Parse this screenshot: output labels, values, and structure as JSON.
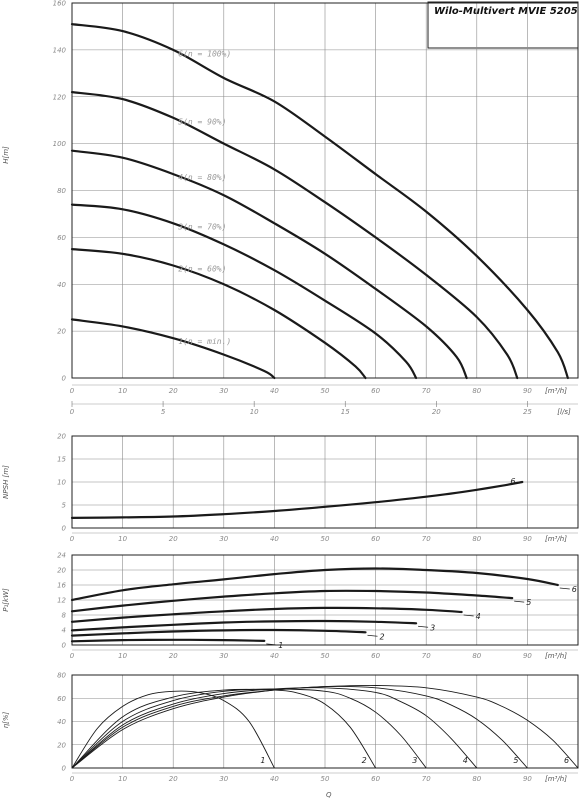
{
  "title": "Wilo-Multivert MVIE 5205",
  "q_unit": "[m³/h]",
  "ls_unit": "[l/s]",
  "bottom_axis_label": "Q",
  "chart_data": [
    {
      "type": "line",
      "id": "head",
      "ylabel": "H[m]",
      "xlim": [
        0,
        100
      ],
      "ylim": [
        0,
        160
      ],
      "x_ticks": [
        0,
        10,
        20,
        30,
        40,
        50,
        60,
        70,
        80,
        90
      ],
      "y_ticks": [
        0,
        20,
        40,
        60,
        80,
        100,
        120,
        140,
        160
      ],
      "series": [
        {
          "name": "1(n = min.)",
          "x": [
            0,
            10,
            20,
            30,
            38,
            40
          ],
          "y": [
            25,
            22,
            17,
            10,
            3,
            0
          ]
        },
        {
          "name": "2(n = 60%)",
          "x": [
            0,
            10,
            20,
            30,
            40,
            50,
            56,
            58
          ],
          "y": [
            55,
            53,
            48,
            40,
            29,
            15,
            5,
            0
          ]
        },
        {
          "name": "3(n = 70%)",
          "x": [
            0,
            10,
            20,
            30,
            40,
            50,
            60,
            66,
            68
          ],
          "y": [
            74,
            72,
            66,
            57,
            46,
            33,
            19,
            7,
            0
          ]
        },
        {
          "name": "4(n = 80%)",
          "x": [
            0,
            10,
            20,
            30,
            40,
            50,
            60,
            70,
            76,
            78
          ],
          "y": [
            97,
            94,
            87,
            78,
            66,
            53,
            38,
            22,
            9,
            0
          ]
        },
        {
          "name": "5(n = 90%)",
          "x": [
            0,
            10,
            20,
            30,
            40,
            50,
            60,
            70,
            80,
            86,
            88
          ],
          "y": [
            122,
            119,
            111,
            100,
            89,
            75,
            60,
            44,
            26,
            10,
            0
          ]
        },
        {
          "name": "6(n = 100%)",
          "x": [
            0,
            10,
            20,
            30,
            40,
            50,
            60,
            70,
            80,
            90,
            96,
            98
          ],
          "y": [
            151,
            148,
            140,
            128,
            118,
            103,
            87,
            71,
            52,
            29,
            11,
            0
          ]
        }
      ],
      "secondary_x_axis": {
        "unit": "[l/s]",
        "ticks": [
          0,
          5,
          10,
          15,
          20,
          25
        ]
      }
    },
    {
      "type": "line",
      "id": "npsh",
      "ylabel": "NPSH [m]",
      "xlim": [
        0,
        100
      ],
      "ylim": [
        0,
        20
      ],
      "x_ticks": [
        0,
        10,
        20,
        30,
        40,
        50,
        60,
        70,
        80,
        90
      ],
      "y_ticks": [
        0,
        5,
        10,
        15,
        20
      ],
      "series": [
        {
          "name": "6",
          "x": [
            0,
            10,
            20,
            30,
            40,
            50,
            60,
            70,
            75,
            80,
            85,
            89
          ],
          "y": [
            2.2,
            2.3,
            2.5,
            3.0,
            3.7,
            4.6,
            5.6,
            6.8,
            7.5,
            8.3,
            9.2,
            10.0
          ]
        }
      ]
    },
    {
      "type": "line",
      "id": "power",
      "ylabel": "P₁[kW]",
      "xlim": [
        0,
        100
      ],
      "ylim": [
        0,
        24
      ],
      "x_ticks": [
        0,
        10,
        20,
        30,
        40,
        50,
        60,
        70,
        80,
        90
      ],
      "y_ticks": [
        0,
        4,
        8,
        12,
        16,
        20,
        24
      ],
      "series": [
        {
          "name": "1",
          "x": [
            0,
            10,
            20,
            30,
            38
          ],
          "y": [
            1.0,
            1.3,
            1.4,
            1.3,
            1.1
          ]
        },
        {
          "name": "2",
          "x": [
            0,
            10,
            20,
            30,
            40,
            50,
            58
          ],
          "y": [
            2.5,
            3.1,
            3.6,
            3.9,
            4.0,
            3.8,
            3.4
          ]
        },
        {
          "name": "3",
          "x": [
            0,
            10,
            20,
            30,
            40,
            50,
            60,
            68
          ],
          "y": [
            3.9,
            4.7,
            5.4,
            6.0,
            6.3,
            6.4,
            6.2,
            5.8
          ]
        },
        {
          "name": "4",
          "x": [
            0,
            10,
            20,
            30,
            40,
            50,
            60,
            70,
            77
          ],
          "y": [
            6.2,
            7.3,
            8.2,
            9.0,
            9.6,
            9.9,
            9.8,
            9.4,
            8.8
          ]
        },
        {
          "name": "5",
          "x": [
            0,
            10,
            20,
            30,
            40,
            50,
            60,
            70,
            80,
            87
          ],
          "y": [
            9.0,
            10.5,
            11.8,
            12.9,
            13.8,
            14.4,
            14.4,
            14.0,
            13.2,
            12.5
          ]
        },
        {
          "name": "6",
          "x": [
            0,
            10,
            20,
            30,
            40,
            50,
            60,
            70,
            80,
            90,
            96
          ],
          "y": [
            12.0,
            14.6,
            16.2,
            17.5,
            18.9,
            20.0,
            20.4,
            20.0,
            19.2,
            17.6,
            16.0
          ]
        }
      ]
    },
    {
      "type": "line",
      "id": "efficiency",
      "ylabel": "η[%]",
      "xlim": [
        0,
        100
      ],
      "ylim": [
        0,
        80
      ],
      "x_ticks": [
        0,
        10,
        20,
        30,
        40,
        50,
        60,
        70,
        80,
        90
      ],
      "y_ticks": [
        0,
        20,
        40,
        60,
        80
      ],
      "series": [
        {
          "name": "1",
          "x": [
            0,
            5,
            10,
            15,
            20,
            25,
            30,
            35,
            40
          ],
          "y": [
            0,
            34,
            53,
            63,
            66,
            65,
            58,
            40,
            0
          ]
        },
        {
          "name": "2",
          "x": [
            0,
            10,
            20,
            30,
            40,
            45,
            50,
            55,
            60
          ],
          "y": [
            0,
            44,
            61,
            67,
            67,
            64,
            55,
            35,
            0
          ]
        },
        {
          "name": "3",
          "x": [
            0,
            10,
            20,
            30,
            40,
            50,
            55,
            60,
            65,
            70
          ],
          "y": [
            0,
            40,
            58,
            66,
            68,
            66,
            60,
            48,
            28,
            0
          ]
        },
        {
          "name": "4",
          "x": [
            0,
            10,
            20,
            30,
            40,
            50,
            60,
            65,
            70,
            75,
            80
          ],
          "y": [
            0,
            37,
            55,
            64,
            68,
            69,
            65,
            57,
            45,
            25,
            0
          ]
        },
        {
          "name": "5",
          "x": [
            0,
            10,
            20,
            30,
            40,
            50,
            60,
            70,
            75,
            80,
            85,
            90
          ],
          "y": [
            0,
            35,
            53,
            62,
            67,
            70,
            69,
            62,
            54,
            42,
            24,
            0
          ]
        },
        {
          "name": "6",
          "x": [
            0,
            10,
            20,
            30,
            40,
            50,
            60,
            70,
            80,
            85,
            90,
            95,
            100
          ],
          "y": [
            0,
            33,
            51,
            61,
            67,
            70,
            71,
            69,
            61,
            53,
            41,
            24,
            0
          ]
        }
      ]
    }
  ]
}
